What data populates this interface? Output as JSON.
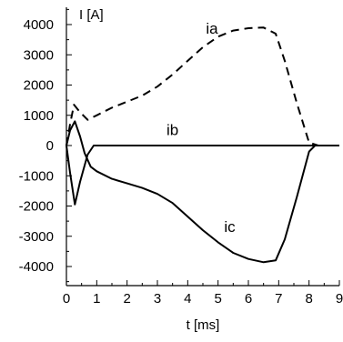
{
  "chart_data": {
    "type": "line",
    "ylabel": "I [A]",
    "xlabel": "t [ms]",
    "xlim": [
      0,
      9
    ],
    "ylim": [
      -4500,
      4000
    ],
    "xticks": [
      0,
      1,
      2,
      3,
      4,
      5,
      6,
      7,
      8,
      9
    ],
    "yticks": [
      4000,
      3000,
      2000,
      1000,
      0,
      -1000,
      -2000,
      -3000,
      -4000
    ],
    "grid": false,
    "series": [
      {
        "name": "ia",
        "style": "dashed",
        "points": [
          [
            0,
            0
          ],
          [
            0.12,
            700
          ],
          [
            0.25,
            1350
          ],
          [
            0.45,
            1100
          ],
          [
            0.7,
            850
          ],
          [
            1,
            1000
          ],
          [
            1.5,
            1250
          ],
          [
            2,
            1450
          ],
          [
            2.5,
            1650
          ],
          [
            3,
            1950
          ],
          [
            3.5,
            2350
          ],
          [
            4,
            2800
          ],
          [
            4.5,
            3250
          ],
          [
            5,
            3600
          ],
          [
            5.5,
            3800
          ],
          [
            6,
            3880
          ],
          [
            6.5,
            3900
          ],
          [
            6.9,
            3700
          ],
          [
            7.2,
            2800
          ],
          [
            7.6,
            1400
          ],
          [
            8,
            100
          ],
          [
            8.3,
            0
          ],
          [
            9,
            0
          ]
        ]
      },
      {
        "name": "ib",
        "style": "solid",
        "points": [
          [
            0,
            0
          ],
          [
            0.12,
            -900
          ],
          [
            0.28,
            -1950
          ],
          [
            0.45,
            -1200
          ],
          [
            0.7,
            -300
          ],
          [
            0.9,
            0
          ],
          [
            9,
            0
          ]
        ]
      },
      {
        "name": "ic",
        "style": "solid",
        "points": [
          [
            0,
            0
          ],
          [
            0.12,
            500
          ],
          [
            0.28,
            800
          ],
          [
            0.45,
            300
          ],
          [
            0.6,
            -250
          ],
          [
            0.8,
            -700
          ],
          [
            1,
            -850
          ],
          [
            1.5,
            -1100
          ],
          [
            2,
            -1250
          ],
          [
            2.5,
            -1400
          ],
          [
            3,
            -1600
          ],
          [
            3.5,
            -1900
          ],
          [
            4,
            -2350
          ],
          [
            4.5,
            -2800
          ],
          [
            5,
            -3200
          ],
          [
            5.5,
            -3550
          ],
          [
            6,
            -3750
          ],
          [
            6.5,
            -3860
          ],
          [
            6.9,
            -3800
          ],
          [
            7.2,
            -3100
          ],
          [
            7.6,
            -1700
          ],
          [
            8,
            -200
          ],
          [
            8.2,
            0
          ],
          [
            9,
            0
          ]
        ]
      }
    ]
  }
}
